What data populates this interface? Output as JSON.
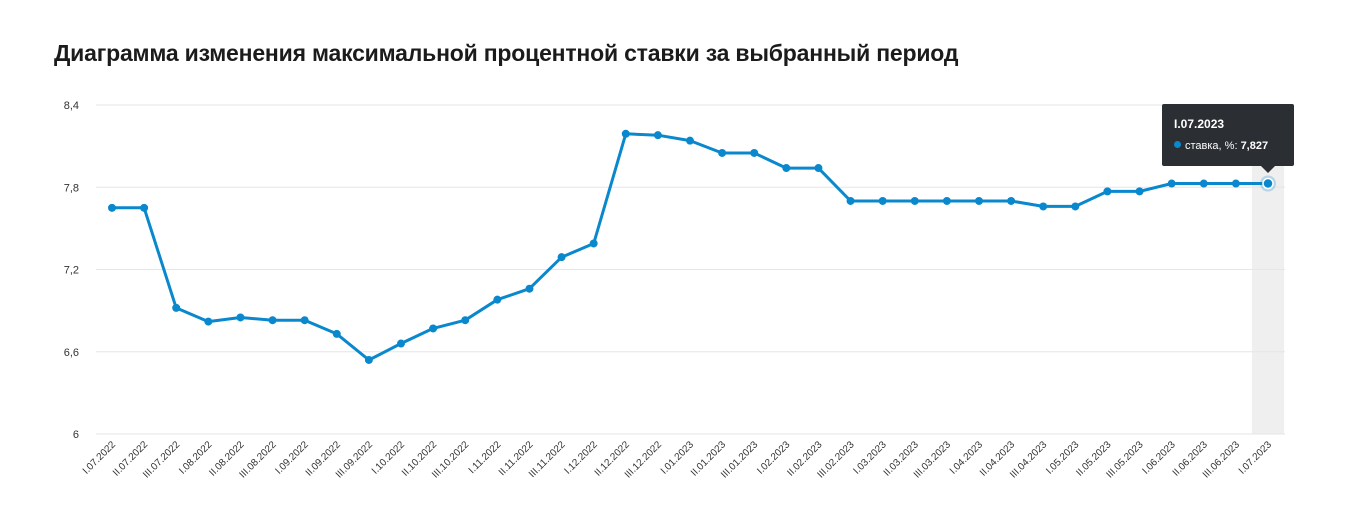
{
  "title": "Диаграмма изменения максимальной процентной ставки за выбранный период",
  "colors": {
    "line": "#0a88cd",
    "grid": "#e6e6e6",
    "highlight": "#efefef"
  },
  "tooltip": {
    "date": "I.07.2023",
    "series_label": "ставка, %:",
    "value": "7,827"
  },
  "chart_data": {
    "type": "line",
    "title": "Диаграмма изменения максимальной процентной ставки за выбранный период",
    "xlabel": "",
    "ylabel": "",
    "ylim": [
      6,
      8.4
    ],
    "yticks": [
      6,
      6.6,
      7.2,
      7.8,
      8.4
    ],
    "ytick_labels": [
      "6",
      "6,6",
      "7,2",
      "7,8",
      "8,4"
    ],
    "grid": true,
    "highlighted_index": 36,
    "categories": [
      "I.07.2022",
      "II.07.2022",
      "III.07.2022",
      "I.08.2022",
      "II.08.2022",
      "III.08.2022",
      "I.09.2022",
      "II.09.2022",
      "III.09.2022",
      "I.10.2022",
      "II.10.2022",
      "III.10.2022",
      "I.11.2022",
      "II.11.2022",
      "III.11.2022",
      "I.12.2022",
      "II.12.2022",
      "III.12.2022",
      "I.01.2023",
      "II.01.2023",
      "III.01.2023",
      "I.02.2023",
      "II.02.2023",
      "III.02.2023",
      "I.03.2023",
      "II.03.2023",
      "III.03.2023",
      "I.04.2023",
      "II.04.2023",
      "III.04.2023",
      "I.05.2023",
      "II.05.2023",
      "III.05.2023",
      "I.06.2023",
      "II.06.2023",
      "III.06.2023",
      "I.07.2023"
    ],
    "series": [
      {
        "name": "ставка, %",
        "values": [
          7.65,
          7.65,
          6.92,
          6.82,
          6.85,
          6.83,
          6.83,
          6.73,
          6.54,
          6.66,
          6.77,
          6.83,
          6.98,
          7.06,
          7.29,
          7.39,
          8.19,
          8.18,
          8.14,
          8.05,
          8.05,
          7.94,
          7.94,
          7.7,
          7.7,
          7.7,
          7.7,
          7.7,
          7.7,
          7.66,
          7.66,
          7.77,
          7.77,
          7.827,
          7.827,
          7.827,
          7.827
        ]
      }
    ]
  }
}
